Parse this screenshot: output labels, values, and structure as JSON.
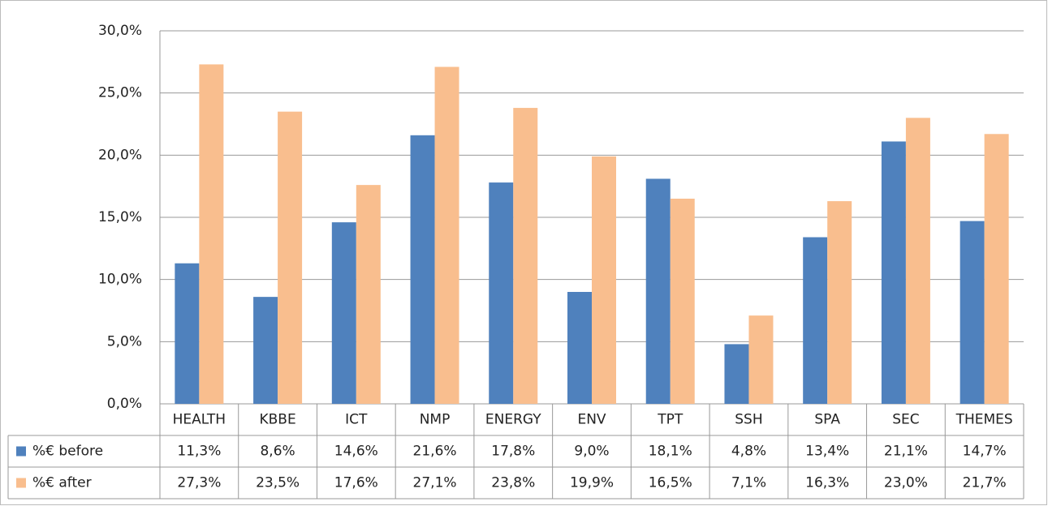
{
  "chart_data": {
    "type": "bar",
    "categories": [
      "HEALTH",
      "KBBE",
      "ICT",
      "NMP",
      "ENERGY",
      "ENV",
      "TPT",
      "SSH",
      "SPA",
      "SEC",
      "THEMES"
    ],
    "series": [
      {
        "name": "%€ before",
        "color": "#4f81bd",
        "values": [
          11.3,
          8.6,
          14.6,
          21.6,
          17.8,
          9.0,
          18.1,
          4.8,
          13.4,
          21.1,
          14.7
        ],
        "value_labels": [
          "11,3%",
          "8,6%",
          "14,6%",
          "21,6%",
          "17,8%",
          "9,0%",
          "18,1%",
          "4,8%",
          "13,4%",
          "21,1%",
          "14,7%"
        ]
      },
      {
        "name": "%€ after",
        "color": "#f9be8e",
        "values": [
          27.3,
          23.5,
          17.6,
          27.1,
          23.8,
          19.9,
          16.5,
          7.1,
          16.3,
          23.0,
          21.7
        ],
        "value_labels": [
          "27,3%",
          "23,5%",
          "17,6%",
          "27,1%",
          "23,8%",
          "19,9%",
          "16,5%",
          "7,1%",
          "16,3%",
          "23,0%",
          "21,7%"
        ]
      }
    ],
    "ylim": [
      0,
      30
    ],
    "yticks": [
      {
        "value": 0,
        "label": "0,0%"
      },
      {
        "value": 5,
        "label": "5,0%"
      },
      {
        "value": 10,
        "label": "10,0%"
      },
      {
        "value": 15,
        "label": "15,0%"
      },
      {
        "value": 20,
        "label": "20,0%"
      },
      {
        "value": 25,
        "label": "25,0%"
      },
      {
        "value": 30,
        "label": "30,0%"
      }
    ],
    "grid": true
  }
}
